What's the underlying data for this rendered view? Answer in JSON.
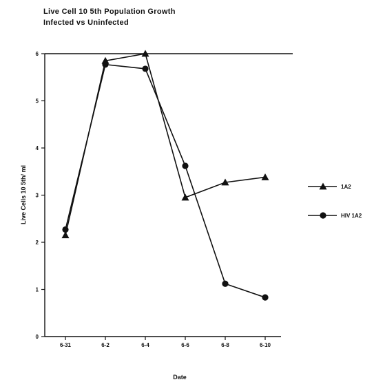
{
  "chart_data": {
    "type": "line",
    "title_lines": [
      "Live Cell 10 5th Population Growth",
      "Infected vs Uninfected"
    ],
    "xlabel": "Date",
    "ylabel": "Live Cells 10 5th/ ml",
    "categories": [
      "6-31",
      "6-2",
      "6-4",
      "6-6",
      "6-8",
      "6-10"
    ],
    "ylim": [
      0,
      6
    ],
    "yticks": [
      "0",
      "1",
      "2",
      "3",
      "4",
      "5",
      "6"
    ],
    "grid": false,
    "legend_position": "right",
    "series": [
      {
        "name": "1A2",
        "marker": "triangle",
        "values": [
          2.15,
          5.85,
          6.0,
          2.95,
          3.27,
          3.38
        ]
      },
      {
        "name": "HIV 1A2",
        "marker": "circle",
        "values": [
          2.27,
          5.77,
          5.68,
          3.62,
          1.12,
          0.83
        ]
      }
    ]
  }
}
